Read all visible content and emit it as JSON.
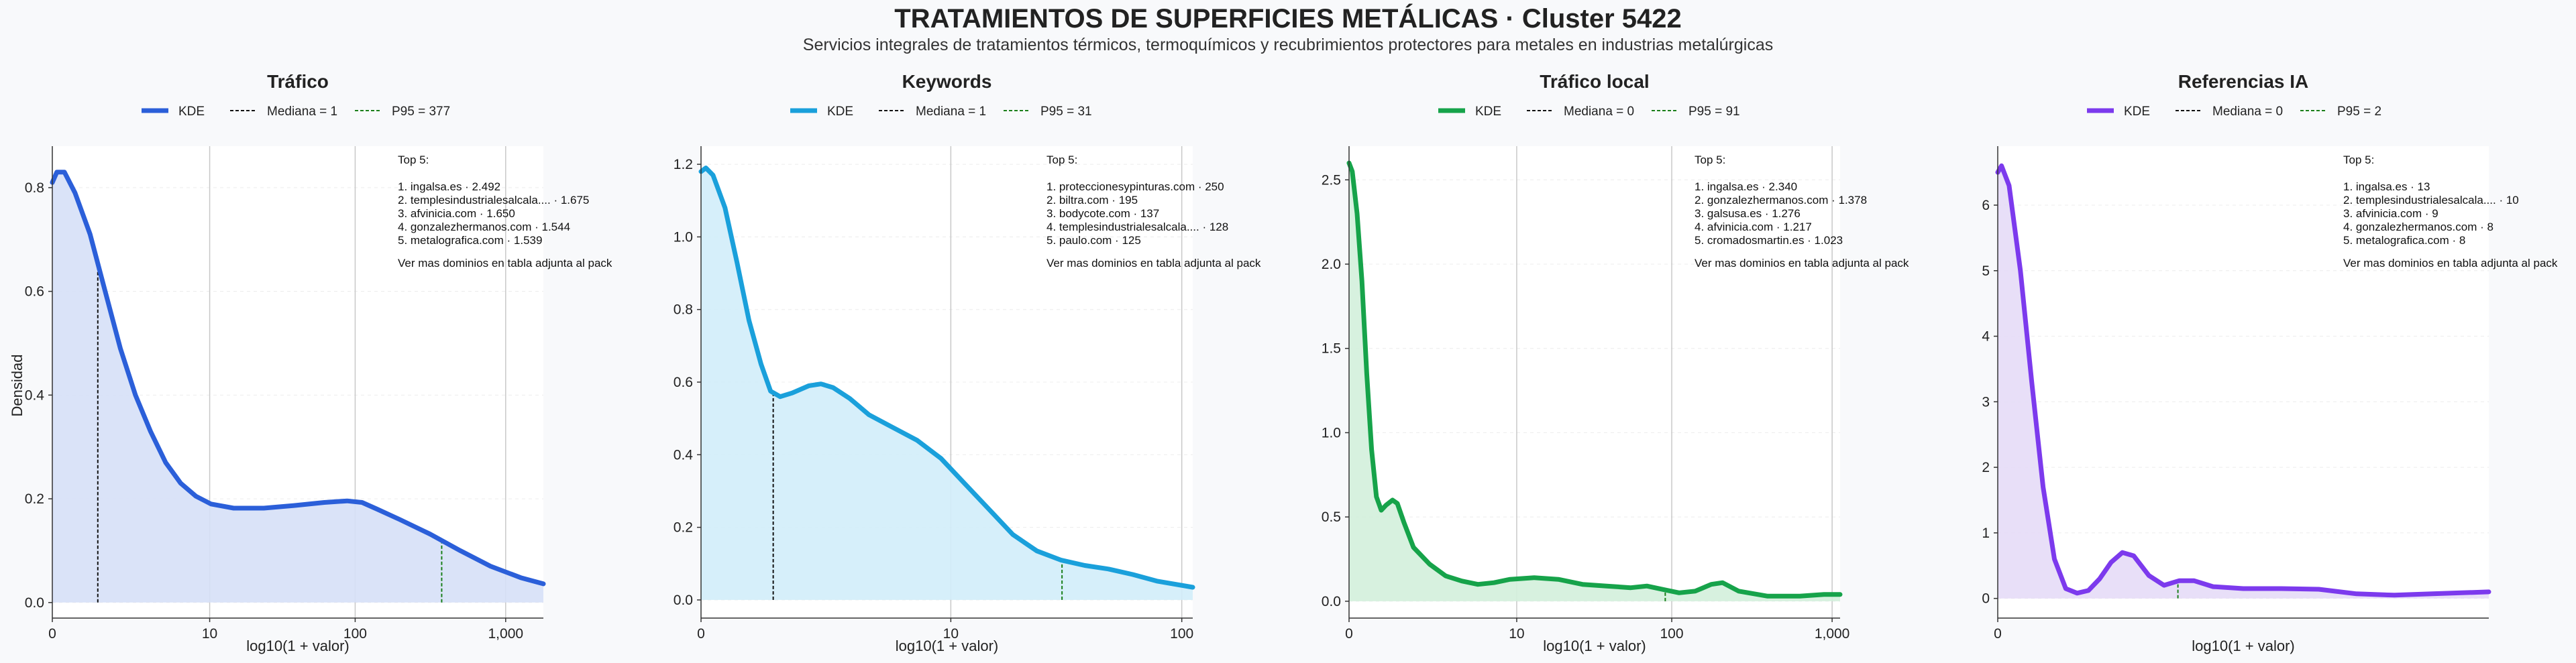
{
  "title": "TRATAMIENTOS DE SUPERFICIES METÁLICAS · Cluster 5422",
  "subtitle": "Servicios integrales de tratamientos térmicos, termoquímicos y recubrimientos protectores para metales en industrias metalúrgicas",
  "ylabel": "Densidad",
  "chart_data": [
    {
      "type": "area",
      "title": "Tráfico",
      "color": "#2b5fd9",
      "fill": "#d6e0f7",
      "legend": [
        "KDE",
        "Mediana = 1",
        "P95 = 377"
      ],
      "xlabel": "log10(1 + valor)",
      "x_scale": "log10(1+x)",
      "xticks": [
        0,
        10,
        100,
        1000
      ],
      "xtick_labels": [
        "0",
        "10",
        "100",
        "1,000"
      ],
      "xlim": [
        0,
        3.25
      ],
      "ylim": [
        -0.03,
        0.88
      ],
      "yticks": [
        0.0,
        0.2,
        0.4,
        0.6,
        0.8
      ],
      "ytick_labels": [
        "0.0",
        "0.2",
        "0.4",
        "0.6",
        "0.8"
      ],
      "median": 0.301,
      "p95": 2.577,
      "kde": [
        [
          0,
          0.81
        ],
        [
          0.03,
          0.83
        ],
        [
          0.08,
          0.83
        ],
        [
          0.15,
          0.79
        ],
        [
          0.25,
          0.71
        ],
        [
          0.35,
          0.6
        ],
        [
          0.45,
          0.49
        ],
        [
          0.55,
          0.4
        ],
        [
          0.65,
          0.33
        ],
        [
          0.75,
          0.27
        ],
        [
          0.85,
          0.23
        ],
        [
          0.95,
          0.205
        ],
        [
          1.05,
          0.19
        ],
        [
          1.2,
          0.182
        ],
        [
          1.4,
          0.182
        ],
        [
          1.6,
          0.187
        ],
        [
          1.8,
          0.193
        ],
        [
          1.95,
          0.196
        ],
        [
          2.05,
          0.193
        ],
        [
          2.15,
          0.18
        ],
        [
          2.3,
          0.16
        ],
        [
          2.5,
          0.132
        ],
        [
          2.7,
          0.1
        ],
        [
          2.9,
          0.07
        ],
        [
          3.1,
          0.048
        ],
        [
          3.25,
          0.036
        ]
      ],
      "top5_title": "Top 5:",
      "top5": [
        "1. ingalsa.es · 2.492",
        "2. templesindustrialesalcala.... · 1.675",
        "3. afvinicia.com · 1.650",
        "4. gonzalezhermanos.com · 1.544",
        "5. metalografica.com · 1.539"
      ],
      "note": "Ver mas dominios en tabla adjunta al pack"
    },
    {
      "type": "area",
      "title": "Keywords",
      "color": "#1aa0db",
      "fill": "#d2edf9",
      "legend": [
        "KDE",
        "Mediana = 1",
        "P95 = 31"
      ],
      "xlabel": "log10(1 + valor)",
      "x_scale": "log10(1+x)",
      "xticks": [
        0,
        10,
        100
      ],
      "xtick_labels": [
        "0",
        "10",
        "100"
      ],
      "xlim": [
        0,
        2.05
      ],
      "ylim": [
        -0.05,
        1.25
      ],
      "yticks": [
        0.0,
        0.2,
        0.4,
        0.6,
        0.8,
        1.0,
        1.2
      ],
      "ytick_labels": [
        "0.0",
        "0.2",
        "0.4",
        "0.6",
        "0.8",
        "1.0",
        "1.2"
      ],
      "median": 0.301,
      "p95": 1.505,
      "kde": [
        [
          0,
          1.18
        ],
        [
          0.02,
          1.19
        ],
        [
          0.05,
          1.17
        ],
        [
          0.1,
          1.08
        ],
        [
          0.15,
          0.93
        ],
        [
          0.2,
          0.77
        ],
        [
          0.25,
          0.65
        ],
        [
          0.29,
          0.575
        ],
        [
          0.33,
          0.56
        ],
        [
          0.38,
          0.57
        ],
        [
          0.45,
          0.59
        ],
        [
          0.5,
          0.595
        ],
        [
          0.55,
          0.585
        ],
        [
          0.62,
          0.555
        ],
        [
          0.7,
          0.51
        ],
        [
          0.8,
          0.475
        ],
        [
          0.9,
          0.44
        ],
        [
          1.0,
          0.39
        ],
        [
          1.1,
          0.32
        ],
        [
          1.2,
          0.25
        ],
        [
          1.3,
          0.18
        ],
        [
          1.4,
          0.135
        ],
        [
          1.5,
          0.11
        ],
        [
          1.6,
          0.095
        ],
        [
          1.7,
          0.085
        ],
        [
          1.8,
          0.07
        ],
        [
          1.9,
          0.052
        ],
        [
          2.05,
          0.035
        ]
      ],
      "top5_title": "Top 5:",
      "top5": [
        "1. proteccionesypinturas.com · 250",
        "2. biltra.com · 195",
        "3. bodycote.com · 137",
        "4. templesindustrialesalcala.... · 128",
        "5. paulo.com · 125"
      ],
      "note": "Ver mas dominios en tabla adjunta al pack"
    },
    {
      "type": "area",
      "title": "Tráfico local",
      "color": "#16a34a",
      "fill": "#d3f0dc",
      "legend": [
        "KDE",
        "Mediana = 0",
        "P95 = 91"
      ],
      "xlabel": "log10(1 + valor)",
      "x_scale": "log10(1+x)",
      "xticks": [
        0,
        10,
        100,
        1000
      ],
      "xtick_labels": [
        "0",
        "10",
        "100",
        "1,000"
      ],
      "xlim": [
        0,
        3.05
      ],
      "ylim": [
        -0.1,
        2.7
      ],
      "yticks": [
        0.0,
        0.5,
        1.0,
        1.5,
        2.0,
        2.5
      ],
      "ytick_labels": [
        "0.0",
        "0.5",
        "1.0",
        "1.5",
        "2.0",
        "2.5"
      ],
      "median": 0,
      "p95": 1.964,
      "kde": [
        [
          0,
          2.6
        ],
        [
          0.02,
          2.55
        ],
        [
          0.05,
          2.3
        ],
        [
          0.08,
          1.9
        ],
        [
          0.11,
          1.35
        ],
        [
          0.14,
          0.9
        ],
        [
          0.17,
          0.62
        ],
        [
          0.2,
          0.54
        ],
        [
          0.23,
          0.57
        ],
        [
          0.27,
          0.6
        ],
        [
          0.3,
          0.58
        ],
        [
          0.34,
          0.47
        ],
        [
          0.4,
          0.32
        ],
        [
          0.5,
          0.22
        ],
        [
          0.6,
          0.15
        ],
        [
          0.7,
          0.12
        ],
        [
          0.8,
          0.1
        ],
        [
          0.9,
          0.11
        ],
        [
          1.0,
          0.13
        ],
        [
          1.15,
          0.14
        ],
        [
          1.3,
          0.13
        ],
        [
          1.45,
          0.1
        ],
        [
          1.6,
          0.09
        ],
        [
          1.75,
          0.08
        ],
        [
          1.85,
          0.09
        ],
        [
          1.95,
          0.07
        ],
        [
          2.05,
          0.05
        ],
        [
          2.15,
          0.06
        ],
        [
          2.25,
          0.1
        ],
        [
          2.32,
          0.11
        ],
        [
          2.42,
          0.06
        ],
        [
          2.6,
          0.03
        ],
        [
          2.8,
          0.03
        ],
        [
          2.95,
          0.04
        ],
        [
          3.05,
          0.04
        ]
      ],
      "top5_title": "Top 5:",
      "top5": [
        "1. ingalsa.es · 2.340",
        "2. gonzalezhermanos.com · 1.378",
        "3. galsusa.es · 1.276",
        "4. afvinicia.com · 1.217",
        "5. cromadosmartin.es · 1.023"
      ],
      "note": "Ver mas dominios en tabla adjunta al pack"
    },
    {
      "type": "area",
      "title": "Referencias IA",
      "color": "#7c3aed",
      "fill": "#e6dcf7",
      "legend": [
        "KDE",
        "Mediana = 0",
        "P95 = 2"
      ],
      "xlabel": "log10(1 + valor)",
      "x_scale": "log10(1+x)",
      "xticks": [
        0
      ],
      "xtick_labels": [
        "0"
      ],
      "xlim": [
        0,
        1.3
      ],
      "ylim": [
        -0.3,
        6.9
      ],
      "yticks": [
        0,
        1,
        2,
        3,
        4,
        5,
        6
      ],
      "ytick_labels": [
        "0",
        "1",
        "2",
        "3",
        "4",
        "5",
        "6"
      ],
      "median": 0,
      "p95": 0.477,
      "kde": [
        [
          0,
          6.5
        ],
        [
          0.01,
          6.6
        ],
        [
          0.03,
          6.3
        ],
        [
          0.06,
          5.0
        ],
        [
          0.09,
          3.3
        ],
        [
          0.12,
          1.7
        ],
        [
          0.15,
          0.6
        ],
        [
          0.18,
          0.15
        ],
        [
          0.21,
          0.08
        ],
        [
          0.24,
          0.12
        ],
        [
          0.27,
          0.3
        ],
        [
          0.3,
          0.55
        ],
        [
          0.33,
          0.7
        ],
        [
          0.36,
          0.65
        ],
        [
          0.4,
          0.35
        ],
        [
          0.44,
          0.2
        ],
        [
          0.48,
          0.27
        ],
        [
          0.52,
          0.27
        ],
        [
          0.57,
          0.18
        ],
        [
          0.65,
          0.15
        ],
        [
          0.75,
          0.15
        ],
        [
          0.85,
          0.14
        ],
        [
          0.95,
          0.07
        ],
        [
          1.05,
          0.05
        ],
        [
          1.15,
          0.07
        ],
        [
          1.3,
          0.1
        ]
      ],
      "top5_title": "Top 5:",
      "top5": [
        "1. ingalsa.es · 13",
        "2. templesindustrialesalcala.... · 10",
        "3. afvinicia.com · 9",
        "4. gonzalezhermanos.com · 8",
        "5. metalografica.com · 8"
      ],
      "note": "Ver mas dominios en tabla adjunta al pack"
    }
  ]
}
